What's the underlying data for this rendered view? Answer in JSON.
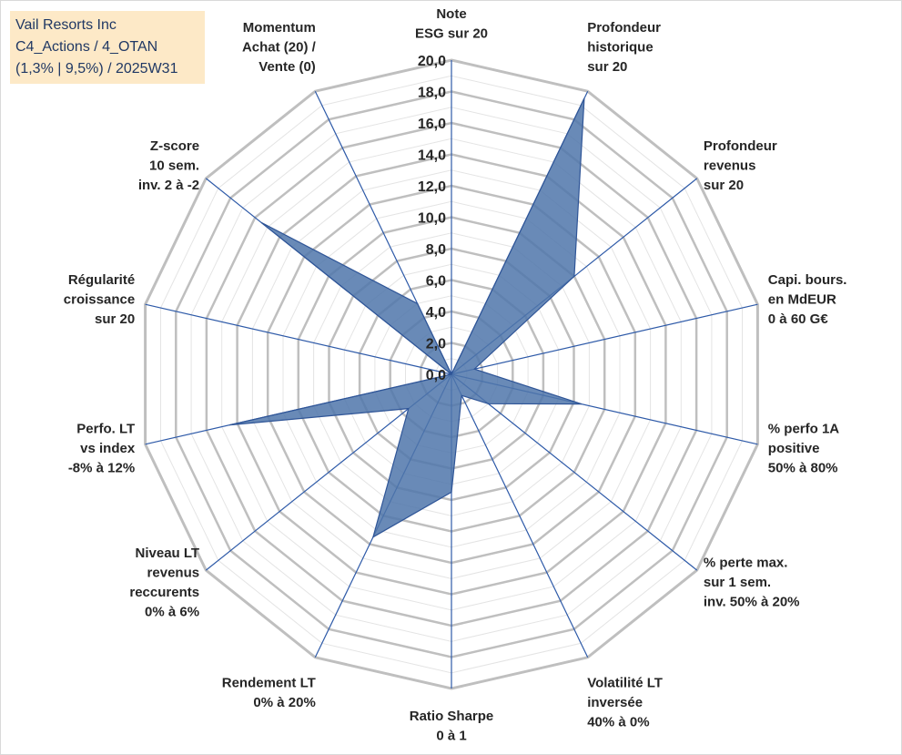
{
  "header": {
    "lines": [
      "Vail Resorts Inc",
      "C4_Actions / 4_OTAN",
      "(1,3% | 9,5%) / 2025W31"
    ]
  },
  "chart_data": {
    "type": "radar",
    "title": "",
    "rlim": [
      0,
      20
    ],
    "tick_labels": [
      "0,0",
      "2,0",
      "4,0",
      "6,0",
      "8,0",
      "10,0",
      "12,0",
      "14,0",
      "16,0",
      "18,0",
      "20,0"
    ],
    "grid": true,
    "axes": [
      {
        "label": [
          "Note",
          "ESG sur 20"
        ],
        "value": 0
      },
      {
        "label": [
          "Profondeur",
          "historique",
          "sur 20"
        ],
        "value": 19.5
      },
      {
        "label": [
          "Profondeur",
          "revenus",
          "sur 20"
        ],
        "value": 10.0
      },
      {
        "label": [
          "Capi. bours.",
          "en MdEUR",
          "0 à 60 G€"
        ],
        "value": 1.5
      },
      {
        "label": [
          "% perfo 1A",
          "positive",
          "50% à 80%"
        ],
        "value": 8.5
      },
      {
        "label": [
          "% perte max.",
          "sur 1 sem.",
          "inv. 50% à 20%"
        ],
        "value": 3.0
      },
      {
        "label": [
          "Volatilité LT",
          "inversée",
          "40% à 0%"
        ],
        "value": 1.5
      },
      {
        "label": [
          "Ratio Sharpe",
          "0 à 1"
        ],
        "value": 7.5
      },
      {
        "label": [
          "Rendement LT",
          "0% à 20%"
        ],
        "value": 11.5
      },
      {
        "label": [
          "Niveau LT",
          "revenus",
          "reccurents",
          "0% à 6%"
        ],
        "value": 3.5
      },
      {
        "label": [
          "Perfo. LT",
          "vs index",
          "-8% à 12%"
        ],
        "value": 14.5
      },
      {
        "label": [
          "Régularité",
          "croissance",
          "sur 20"
        ],
        "value": 0
      },
      {
        "label": [
          "Z-score",
          "10 sem.",
          "inv. 2 à -2"
        ],
        "value": 15.5
      },
      {
        "label": [
          "Momentum",
          "Achat (20) /",
          "Vente (0)"
        ],
        "value": 5.0
      }
    ],
    "colors": {
      "fill": "#4f76aa",
      "stroke": "#2f5597",
      "spoke": "#2e5aa8",
      "ring_major": "#bfbfbf",
      "ring_minor": "#e4e4e4"
    }
  }
}
